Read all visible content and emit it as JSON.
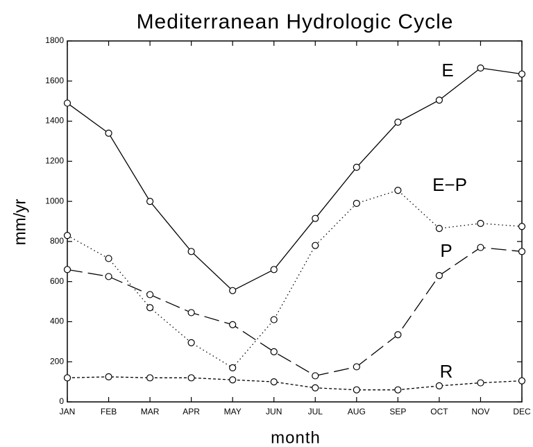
{
  "chart_data": {
    "type": "line",
    "title": "Mediterranean Hydrologic Cycle",
    "x_label": "month",
    "y_label": "mm/yr",
    "categories": [
      "JAN",
      "FEB",
      "MAR",
      "APR",
      "MAY",
      "JUN",
      "JUL",
      "AUG",
      "SEP",
      "OCT",
      "NOV",
      "DEC"
    ],
    "series": [
      {
        "name": "E",
        "color": "#000000",
        "style": "solid",
        "values": [
          1490,
          1340,
          1000,
          750,
          555,
          660,
          915,
          1170,
          1395,
          1505,
          1665,
          1635
        ]
      },
      {
        "name": "E−P",
        "color": "#000000",
        "style": "dotted",
        "values": [
          830,
          715,
          470,
          295,
          170,
          410,
          780,
          990,
          1055,
          865,
          890,
          875
        ]
      },
      {
        "name": "P",
        "color": "#000000",
        "style": "dashed",
        "values": [
          660,
          625,
          535,
          445,
          385,
          250,
          130,
          175,
          335,
          630,
          770,
          750
        ]
      },
      {
        "name": "R",
        "color": "#000000",
        "style": "shortdash",
        "values": [
          120,
          125,
          120,
          120,
          110,
          100,
          70,
          60,
          60,
          80,
          95,
          105
        ]
      }
    ],
    "ylim": [
      0,
      1800
    ],
    "yticks": [
      0,
      200,
      400,
      600,
      800,
      1000,
      1200,
      1400,
      1600,
      1800
    ],
    "grid": false
  }
}
